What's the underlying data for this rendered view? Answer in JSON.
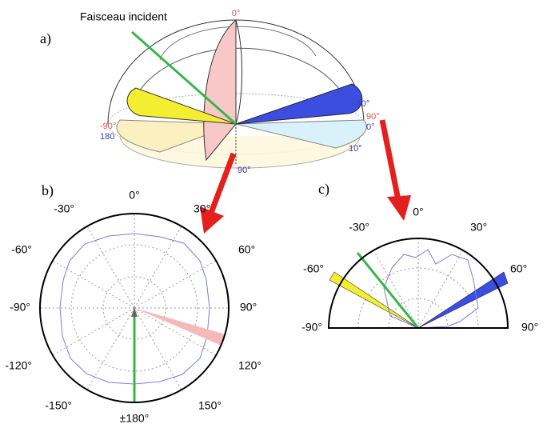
{
  "panel_a": {
    "label": "a)",
    "beam_label": "Faisceau incident",
    "angle_labels": [
      "0°",
      "-90°",
      "180",
      "-10°",
      "90°",
      "0°",
      "10°",
      "90°"
    ]
  },
  "panel_b": {
    "label": "b)",
    "angle_labels": [
      "0°",
      "30°",
      "60°",
      "90°",
      "120°",
      "150°",
      "±180°",
      "-150°",
      "-120°",
      "-90°",
      "-60°",
      "-30°"
    ]
  },
  "panel_c": {
    "label": "c)",
    "angle_labels": [
      "0°",
      "30°",
      "60°",
      "90°",
      "-30°",
      "-60°",
      "-90°"
    ]
  }
}
